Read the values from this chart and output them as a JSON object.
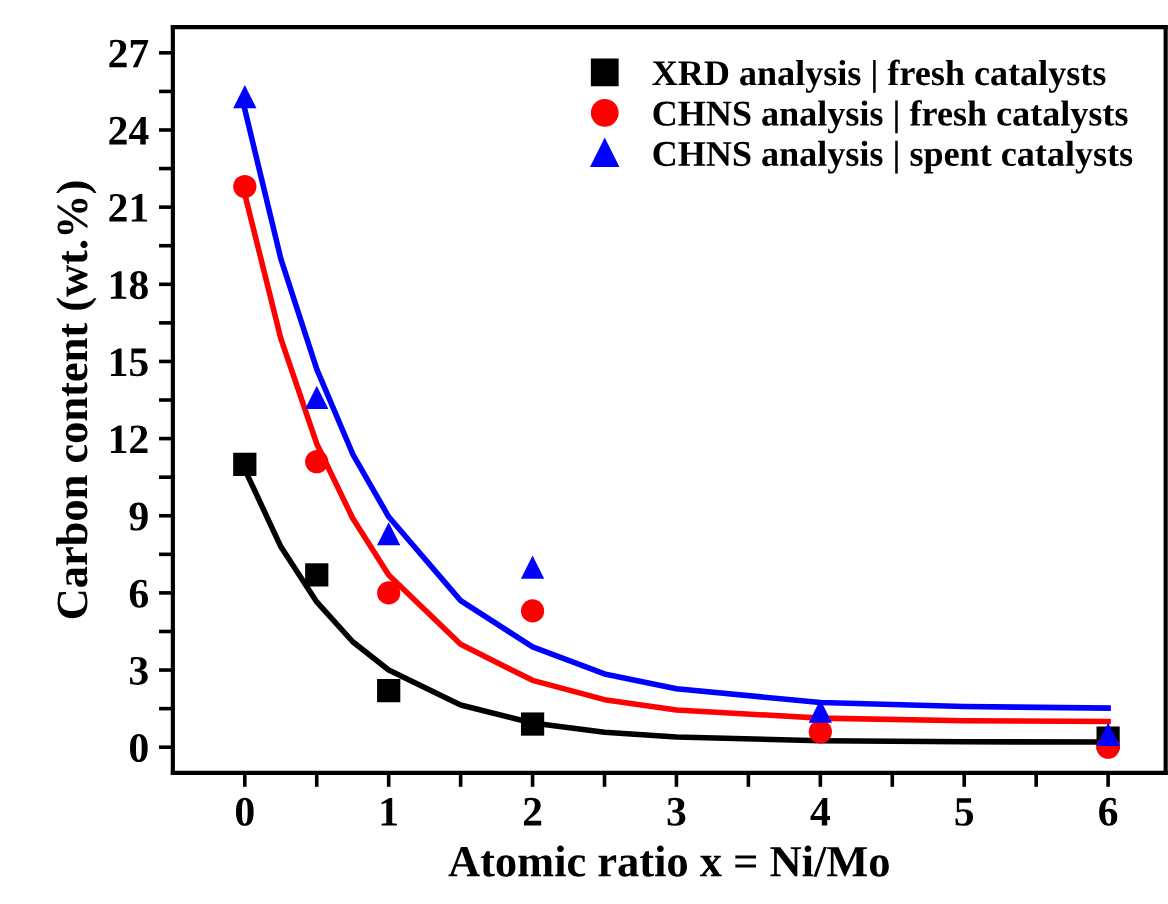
{
  "chart_data": {
    "type": "scatter",
    "xlabel": "Atomic ratio x = Ni/Mo",
    "ylabel": "Carbon content (wt.%)",
    "xlim": [
      -0.5,
      6.4
    ],
    "ylim": [
      -1,
      28
    ],
    "xticks": [
      0,
      {
        "value": 0.5,
        "label": null
      },
      1,
      {
        "value": 1.5,
        "label": null
      },
      2,
      {
        "value": 2.5,
        "label": null
      },
      3,
      {
        "value": 3.5,
        "label": null
      },
      4,
      {
        "value": 4.5,
        "label": null
      },
      5,
      {
        "value": 5.5,
        "label": null
      },
      6
    ],
    "yticks": [
      0,
      {
        "value": 1.5,
        "label": null
      },
      3,
      {
        "value": 4.5,
        "label": null
      },
      6,
      {
        "value": 7.5,
        "label": null
      },
      9,
      {
        "value": 10.5,
        "label": null
      },
      12,
      {
        "value": 13.5,
        "label": null
      },
      15,
      {
        "value": 16.5,
        "label": null
      },
      18,
      {
        "value": 19.5,
        "label": null
      },
      21,
      {
        "value": 22.5,
        "label": null
      },
      24,
      {
        "value": 25.5,
        "label": null
      },
      27
    ],
    "grid": false,
    "legend": "top right",
    "series": [
      {
        "type": "line",
        "marker": "none",
        "color": "#000000",
        "x": [
          0,
          0.25,
          0.5,
          0.75,
          1,
          1.5,
          2,
          2.5,
          3,
          4,
          5,
          6
        ],
        "values": [
          10.8,
          7.8,
          5.65,
          4.1,
          3.0,
          1.64,
          0.94,
          0.58,
          0.4,
          0.25,
          0.21,
          0.2
        ]
      },
      {
        "type": "line",
        "marker": "none",
        "color": "#ff0000",
        "x": [
          0,
          0.25,
          0.5,
          0.75,
          1,
          1.5,
          2,
          2.5,
          3,
          4,
          5,
          6
        ],
        "values": [
          21.5,
          15.9,
          11.8,
          8.9,
          6.7,
          4.0,
          2.6,
          1.85,
          1.45,
          1.13,
          1.03,
          1.0
        ]
      },
      {
        "type": "line",
        "marker": "none",
        "color": "#0000ff",
        "x": [
          0,
          0.25,
          0.5,
          0.75,
          1,
          1.5,
          2,
          2.5,
          3,
          4,
          5,
          6
        ],
        "values": [
          24.8,
          19.0,
          14.7,
          11.4,
          8.96,
          5.7,
          3.9,
          2.85,
          2.27,
          1.74,
          1.58,
          1.52
        ]
      },
      {
        "name": "XRD analysis | fresh catalysts",
        "marker": "square",
        "color": "#000000",
        "x": [
          0,
          0.5,
          1,
          2,
          4,
          6
        ],
        "values": [
          11.0,
          6.7,
          2.2,
          0.9,
          null,
          0.35
        ]
      },
      {
        "name": "CHNS analysis | fresh catalysts",
        "marker": "circle",
        "color": "#ff0000",
        "x": [
          0,
          0.5,
          1,
          2,
          4,
          6
        ],
        "values": [
          21.8,
          11.1,
          6.0,
          5.3,
          0.6,
          0.0
        ]
      },
      {
        "name": "CHNS analysis | spent catalysts",
        "marker": "triangle",
        "color": "#0000ff",
        "x": [
          0,
          0.5,
          1,
          2,
          4,
          6
        ],
        "values": [
          25.3,
          13.6,
          8.3,
          7.0,
          1.4,
          0.5
        ]
      }
    ]
  }
}
